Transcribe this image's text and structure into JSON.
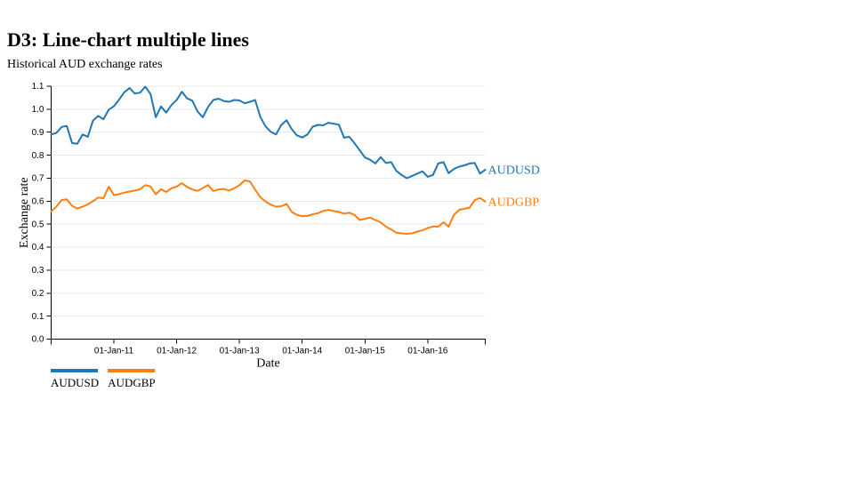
{
  "page": {
    "title": "D3: Line-chart multiple lines",
    "subtitle": "Historical AUD exchange rates",
    "background": "#ffffff"
  },
  "chart_data": {
    "type": "line",
    "title": "Historical AUD exchange rates",
    "xlabel": "Date",
    "ylabel": "Exchange rate",
    "x_unit": "month",
    "x_range": [
      "Jan-2010",
      "Dec-2016"
    ],
    "ylim": [
      0,
      1.1
    ],
    "y_tick_step": 0.1,
    "grid": "horizontal",
    "grid_color": "#e8e8e8",
    "axis_color": "#000000",
    "legend_position": "bottom-left",
    "x_ticks": [
      {
        "month_index": 12,
        "label": "01-Jan-11"
      },
      {
        "month_index": 24,
        "label": "01-Jan-12"
      },
      {
        "month_index": 36,
        "label": "01-Jan-13"
      },
      {
        "month_index": 48,
        "label": "01-Jan-14"
      },
      {
        "month_index": 60,
        "label": "01-Jan-15"
      },
      {
        "month_index": 72,
        "label": "01-Jan-16"
      }
    ],
    "series": [
      {
        "name": "AUDUSD",
        "color": "#1f77b4",
        "values": [
          0.89,
          0.897,
          0.923,
          0.927,
          0.853,
          0.85,
          0.89,
          0.88,
          0.95,
          0.971,
          0.956,
          0.998,
          1.013,
          1.042,
          1.074,
          1.092,
          1.068,
          1.072,
          1.098,
          1.066,
          0.965,
          1.012,
          0.985,
          1.018,
          1.04,
          1.076,
          1.047,
          1.037,
          0.99,
          0.965,
          1.01,
          1.04,
          1.046,
          1.036,
          1.032,
          1.04,
          1.038,
          1.026,
          1.032,
          1.04,
          0.966,
          0.925,
          0.902,
          0.89,
          0.932,
          0.952,
          0.913,
          0.886,
          0.877,
          0.89,
          0.924,
          0.932,
          0.93,
          0.941,
          0.937,
          0.933,
          0.876,
          0.88,
          0.852,
          0.821,
          0.79,
          0.78,
          0.764,
          0.792,
          0.766,
          0.77,
          0.732,
          0.714,
          0.7,
          0.71,
          0.72,
          0.73,
          0.706,
          0.714,
          0.764,
          0.77,
          0.722,
          0.74,
          0.75,
          0.756,
          0.764,
          0.766,
          0.72,
          0.737
        ]
      },
      {
        "name": "AUDGBP",
        "color": "#ff7f0e",
        "values": [
          0.556,
          0.576,
          0.605,
          0.608,
          0.58,
          0.568,
          0.576,
          0.586,
          0.6,
          0.616,
          0.613,
          0.663,
          0.626,
          0.631,
          0.637,
          0.642,
          0.646,
          0.652,
          0.67,
          0.664,
          0.63,
          0.652,
          0.64,
          0.656,
          0.664,
          0.678,
          0.662,
          0.651,
          0.645,
          0.657,
          0.67,
          0.644,
          0.651,
          0.653,
          0.646,
          0.656,
          0.67,
          0.69,
          0.686,
          0.65,
          0.617,
          0.598,
          0.585,
          0.576,
          0.578,
          0.588,
          0.553,
          0.54,
          0.535,
          0.536,
          0.543,
          0.548,
          0.557,
          0.562,
          0.557,
          0.553,
          0.546,
          0.55,
          0.54,
          0.518,
          0.524,
          0.528,
          0.518,
          0.508,
          0.489,
          0.477,
          0.463,
          0.46,
          0.458,
          0.46,
          0.468,
          0.473,
          0.483,
          0.49,
          0.489,
          0.508,
          0.489,
          0.54,
          0.562,
          0.567,
          0.572,
          0.605,
          0.614,
          0.598
        ]
      }
    ]
  },
  "legend": {
    "items": [
      {
        "label": "AUDUSD",
        "color": "#1f77b4"
      },
      {
        "label": "AUDGBP",
        "color": "#ff7f0e"
      }
    ]
  }
}
